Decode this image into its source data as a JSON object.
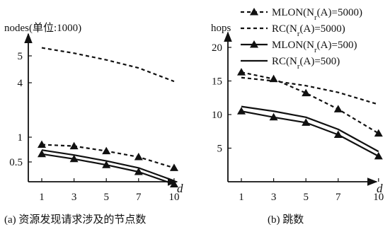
{
  "chart_data": [
    {
      "type": "line",
      "panel_id": "a",
      "caption": "(a) 资源发现请求涉及的节点数",
      "ylabel": "nodes(单位:1000)",
      "xlabel": "d",
      "x_ticks": [
        "1",
        "3",
        "5",
        "7",
        "10"
      ],
      "y_ticks": [
        "0.5",
        "1",
        "4",
        "5"
      ],
      "x": [
        1,
        3,
        5,
        7,
        9.2
      ],
      "series": [
        {
          "name": "MLON(Nr(A)=5000)",
          "values": [
            0.85,
            0.82,
            0.72,
            0.6,
            0.38
          ]
        },
        {
          "name": "RC(Nr(A)=5000)",
          "values": [
            5.3,
            5.1,
            4.85,
            4.55,
            4.05
          ]
        },
        {
          "name": "MLON(Nr(A)=500)",
          "values": [
            0.66,
            0.56,
            0.44,
            0.3,
            0.05
          ]
        },
        {
          "name": "RC(Nr(A)=500)",
          "values": [
            0.74,
            0.64,
            0.52,
            0.38,
            0.12
          ]
        }
      ]
    },
    {
      "type": "line",
      "panel_id": "b",
      "caption": "(b) 跳数",
      "ylabel": "hops",
      "xlabel": "d",
      "x_ticks": [
        "1",
        "3",
        "5",
        "7",
        "10"
      ],
      "y_ticks": [
        "5",
        "10",
        "15",
        "20"
      ],
      "ylim": [
        0,
        25
      ],
      "x": [
        1,
        3,
        5,
        7,
        9.5
      ],
      "series": [
        {
          "name": "MLON(Nr(A)=5000)",
          "values": [
            16.3,
            15.3,
            13.2,
            10.8,
            7.2
          ]
        },
        {
          "name": "RC(Nr(A)=5000)",
          "values": [
            15.5,
            15.0,
            14.3,
            13.3,
            11.5
          ]
        },
        {
          "name": "MLON(Nr(A)=500)",
          "values": [
            10.5,
            9.6,
            8.8,
            7.0,
            3.8
          ]
        },
        {
          "name": "RC(Nr(A)=500)",
          "values": [
            11.2,
            10.5,
            9.6,
            7.8,
            4.5
          ]
        }
      ]
    }
  ],
  "legend": [
    {
      "label": "MLON(N",
      "sub": "r",
      "tail": "(A)=5000)"
    },
    {
      "label": "RC(N",
      "sub": "r",
      "tail": "(A)=5000)"
    },
    {
      "label": "MLON(N",
      "sub": "r",
      "tail": "(A)=500)"
    },
    {
      "label": "RC(N",
      "sub": "r",
      "tail": "(A)=500)"
    }
  ],
  "colors": {
    "ink": "#111111",
    "background": "#ffffff"
  }
}
